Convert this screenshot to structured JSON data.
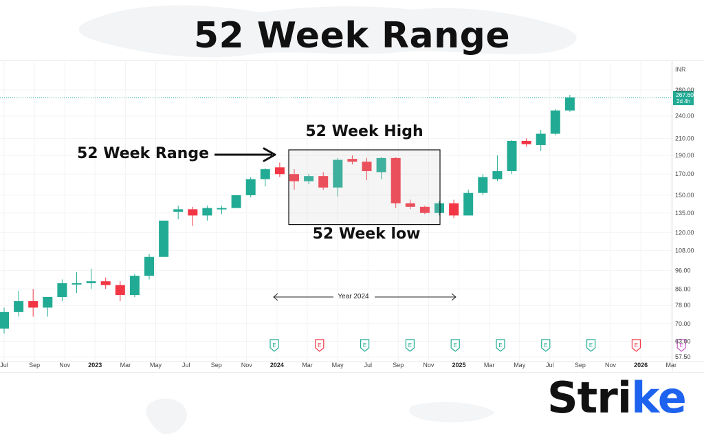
{
  "headline": "52 Week Range",
  "brand": {
    "name_main": "Stri",
    "name_accent": "ke",
    "accent_color": "#1e63ef"
  },
  "colors": {
    "up": "#22ab94",
    "down": "#f23645",
    "price_line": "#22ab94",
    "earnings_up": "#22ab94",
    "earnings_down": "#f23645",
    "earnings_future": "#cc55cc"
  },
  "chart_data": {
    "type": "candlestick",
    "currency": "INR",
    "y_scale": "log",
    "ylim": [
      57.5,
      288
    ],
    "y_ticks": [
      "280.00",
      "240.00",
      "210.00",
      "190.00",
      "170.00",
      "150.00",
      "135.00",
      "120.00",
      "108.00",
      "96.00",
      "86.00",
      "78.00",
      "70.00",
      "63.00",
      "57.50"
    ],
    "x_ticks": [
      "Jul",
      "Sep",
      "Nov",
      "2023",
      "Mar",
      "May",
      "Jul",
      "Sep",
      "Nov",
      "2024",
      "Mar",
      "May",
      "Jul",
      "Sep",
      "Nov",
      "2025",
      "Mar",
      "May",
      "Jul",
      "Sep",
      "Nov",
      "2026",
      "Mar"
    ],
    "last_price": "267.60",
    "countdown": "2d 4h",
    "earnings_markers": [
      {
        "label": "E",
        "kind": "up"
      },
      {
        "label": "E",
        "kind": "down"
      },
      {
        "label": "E",
        "kind": "up"
      },
      {
        "label": "E",
        "kind": "up"
      },
      {
        "label": "E",
        "kind": "up"
      },
      {
        "label": "E",
        "kind": "up"
      },
      {
        "label": "E",
        "kind": "up"
      },
      {
        "label": "E",
        "kind": "up"
      },
      {
        "label": "E",
        "kind": "down"
      },
      {
        "label": "E",
        "kind": "future"
      }
    ],
    "candles": [
      {
        "o": 68,
        "h": 77,
        "l": 66,
        "c": 75
      },
      {
        "o": 75,
        "h": 85,
        "l": 73,
        "c": 80
      },
      {
        "o": 80,
        "h": 86,
        "l": 73,
        "c": 77
      },
      {
        "o": 77,
        "h": 82,
        "l": 73,
        "c": 82
      },
      {
        "o": 82,
        "h": 91,
        "l": 80,
        "c": 89
      },
      {
        "o": 89,
        "h": 95,
        "l": 84,
        "c": 89
      },
      {
        "o": 89,
        "h": 97,
        "l": 86,
        "c": 90
      },
      {
        "o": 90,
        "h": 92,
        "l": 86,
        "c": 88
      },
      {
        "o": 88,
        "h": 90,
        "l": 80,
        "c": 83
      },
      {
        "o": 83,
        "h": 94,
        "l": 82,
        "c": 93
      },
      {
        "o": 93,
        "h": 106,
        "l": 91,
        "c": 104
      },
      {
        "o": 104,
        "h": 129,
        "l": 104,
        "c": 129
      },
      {
        "o": 136,
        "h": 141,
        "l": 130,
        "c": 138
      },
      {
        "o": 138,
        "h": 140,
        "l": 125,
        "c": 133
      },
      {
        "o": 133,
        "h": 141,
        "l": 129,
        "c": 139
      },
      {
        "o": 139,
        "h": 141,
        "l": 134,
        "c": 139
      },
      {
        "o": 139,
        "h": 150,
        "l": 139,
        "c": 150
      },
      {
        "o": 150,
        "h": 167,
        "l": 148,
        "c": 165
      },
      {
        "o": 165,
        "h": 176,
        "l": 158,
        "c": 175
      },
      {
        "o": 177,
        "h": 182,
        "l": 167,
        "c": 170
      },
      {
        "o": 170,
        "h": 175,
        "l": 155,
        "c": 163
      },
      {
        "o": 163,
        "h": 170,
        "l": 160,
        "c": 168
      },
      {
        "o": 168,
        "h": 172,
        "l": 155,
        "c": 157
      },
      {
        "o": 157,
        "h": 187,
        "l": 149,
        "c": 185
      },
      {
        "o": 186,
        "h": 190,
        "l": 180,
        "c": 183
      },
      {
        "o": 183,
        "h": 187,
        "l": 164,
        "c": 173
      },
      {
        "o": 172,
        "h": 188,
        "l": 165,
        "c": 187
      },
      {
        "o": 187,
        "h": 188,
        "l": 139,
        "c": 143
      },
      {
        "o": 143,
        "h": 146,
        "l": 138,
        "c": 140
      },
      {
        "o": 140,
        "h": 141,
        "l": 134,
        "c": 135
      },
      {
        "o": 135,
        "h": 145,
        "l": 133,
        "c": 143
      },
      {
        "o": 143,
        "h": 146,
        "l": 131,
        "c": 133
      },
      {
        "o": 133,
        "h": 155,
        "l": 133,
        "c": 152
      },
      {
        "o": 152,
        "h": 170,
        "l": 150,
        "c": 167
      },
      {
        "o": 165,
        "h": 190,
        "l": 163,
        "c": 173
      },
      {
        "o": 173,
        "h": 208,
        "l": 170,
        "c": 207
      },
      {
        "o": 207,
        "h": 210,
        "l": 200,
        "c": 203
      },
      {
        "o": 202,
        "h": 221,
        "l": 195,
        "c": 216
      },
      {
        "o": 216,
        "h": 250,
        "l": 214,
        "c": 248
      },
      {
        "o": 248,
        "h": 272,
        "l": 246,
        "c": 268
      }
    ],
    "annotations": {
      "range_label": "52 Week Range",
      "high_label": "52 Week High",
      "low_label": "52 Week low",
      "year_label": "Year 2024"
    }
  }
}
